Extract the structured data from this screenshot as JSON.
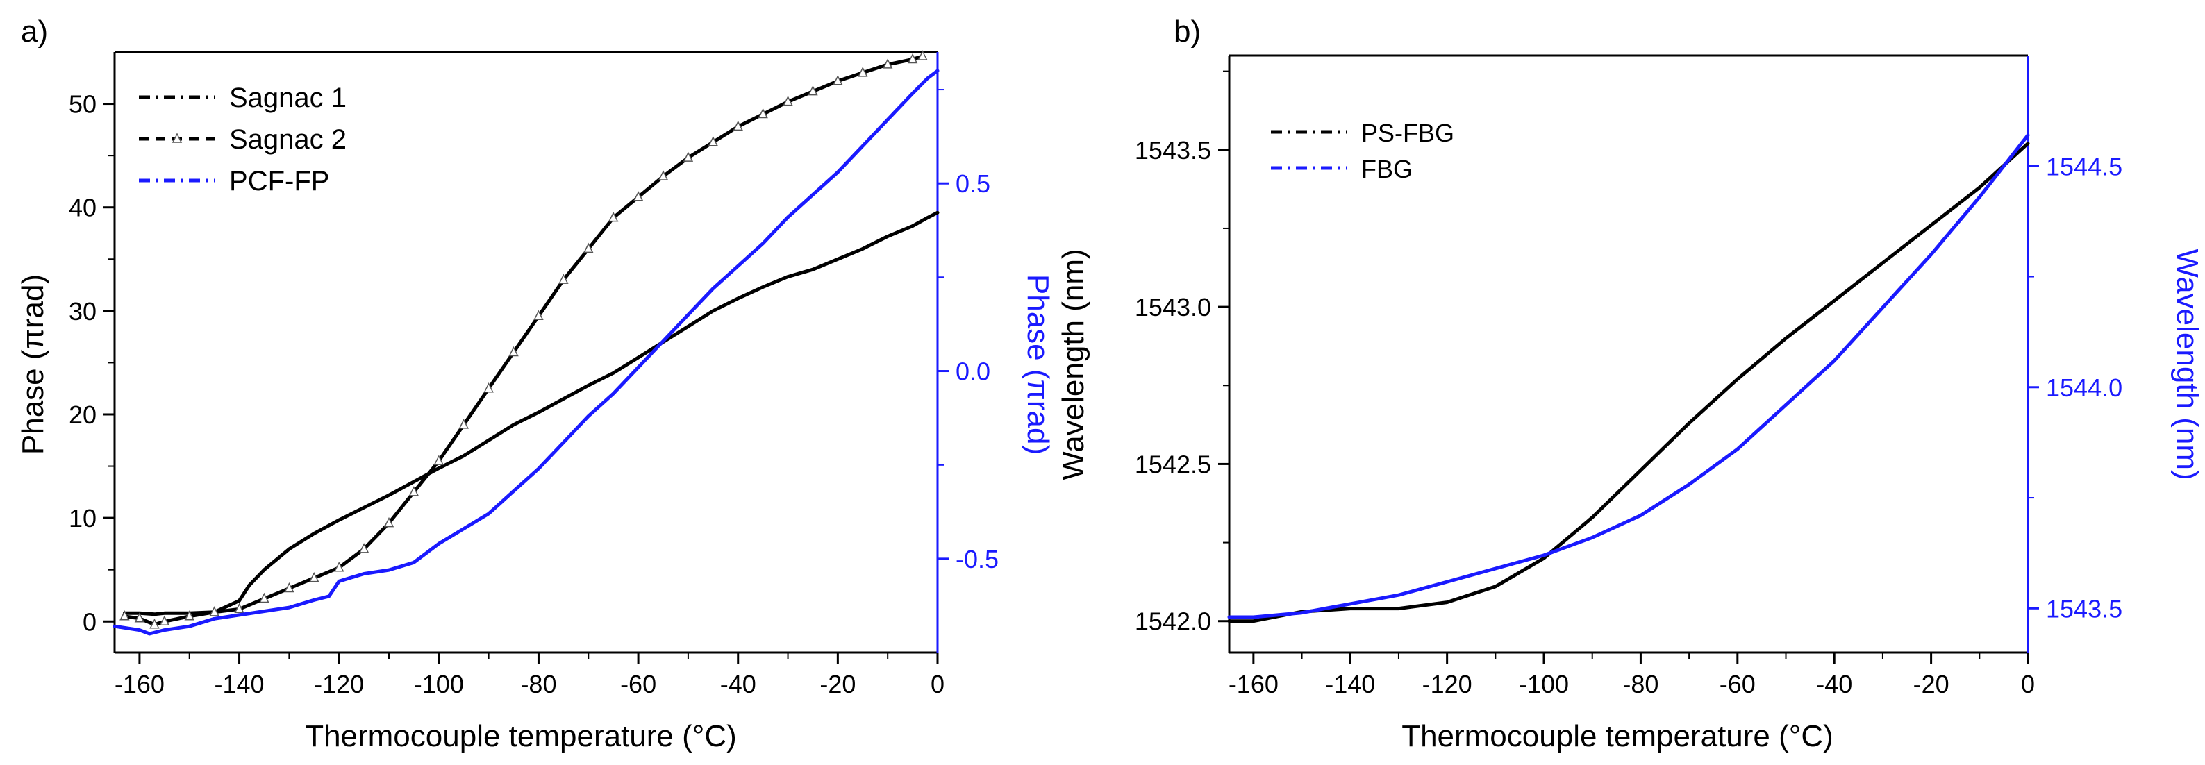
{
  "chart_data": [
    {
      "type": "line",
      "panel_label": "a)",
      "xlabel": "Thermocouple temperature (°C)",
      "ylabel": "Phase (πrad)",
      "y2label": "Phase (πrad)",
      "xlim": [
        -165,
        0
      ],
      "ylim": [
        -3,
        55
      ],
      "y2lim": [
        -0.75,
        0.85
      ],
      "xticks": [
        -160,
        -140,
        -120,
        -100,
        -80,
        -60,
        -40,
        -20,
        0
      ],
      "xtick_labels": [
        "-160",
        "-140",
        "-120",
        "-100",
        "-80",
        "-60",
        "-40",
        "-20",
        "0"
      ],
      "yticks": [
        0,
        10,
        20,
        30,
        40,
        50
      ],
      "ytick_labels": [
        "0",
        "10",
        "20",
        "30",
        "40",
        "50"
      ],
      "y2ticks": [
        -0.5,
        0.0,
        0.5
      ],
      "y2tick_labels": [
        "-0.5",
        "0.0",
        "0.5"
      ],
      "colors": {
        "left_axis": "#000000",
        "right_axis": "#1a1aff"
      },
      "legend_position": "top-left",
      "series": [
        {
          "name": "Sagnac 1",
          "axis": "left",
          "color": "#000000",
          "marker": "none",
          "x": [
            -163,
            -160,
            -157,
            -155,
            -150,
            -145,
            -140,
            -138,
            -135,
            -130,
            -125,
            -120,
            -115,
            -110,
            -105,
            -100,
            -95,
            -90,
            -85,
            -80,
            -75,
            -70,
            -65,
            -60,
            -55,
            -50,
            -45,
            -40,
            -35,
            -30,
            -25,
            -20,
            -15,
            -10,
            -5,
            -2,
            0
          ],
          "values": [
            0.8,
            0.8,
            0.7,
            0.8,
            0.8,
            0.9,
            2.0,
            3.5,
            5.0,
            7.0,
            8.5,
            9.8,
            11.0,
            12.2,
            13.5,
            14.8,
            16.0,
            17.5,
            19.0,
            20.2,
            21.5,
            22.8,
            24.0,
            25.5,
            27.0,
            28.5,
            30.0,
            31.2,
            32.3,
            33.3,
            34.0,
            35.0,
            36.0,
            37.2,
            38.2,
            39.0,
            39.5
          ]
        },
        {
          "name": "Sagnac 2",
          "axis": "left",
          "color": "#000000",
          "marker": "triangle-open",
          "x": [
            -163,
            -160,
            -157,
            -155,
            -150,
            -145,
            -140,
            -135,
            -130,
            -125,
            -120,
            -115,
            -110,
            -105,
            -100,
            -95,
            -90,
            -85,
            -80,
            -75,
            -70,
            -65,
            -60,
            -55,
            -50,
            -45,
            -40,
            -35,
            -30,
            -25,
            -20,
            -15,
            -10,
            -5,
            -3
          ],
          "values": [
            0.5,
            0.3,
            -0.3,
            0.0,
            0.5,
            0.9,
            1.2,
            2.2,
            3.2,
            4.2,
            5.2,
            7.0,
            9.5,
            12.5,
            15.5,
            19.0,
            22.5,
            26.0,
            29.5,
            33.0,
            36.0,
            39.0,
            41.0,
            43.0,
            44.8,
            46.3,
            47.8,
            49.0,
            50.2,
            51.2,
            52.2,
            53.0,
            53.8,
            54.3,
            54.6
          ]
        },
        {
          "name": "PCF-FP",
          "axis": "right",
          "color": "#1a1aff",
          "marker": "none",
          "x": [
            -165,
            -160,
            -158,
            -155,
            -150,
            -145,
            -140,
            -135,
            -130,
            -125,
            -122,
            -120,
            -115,
            -110,
            -105,
            -100,
            -95,
            -90,
            -85,
            -80,
            -75,
            -70,
            -65,
            -60,
            -55,
            -50,
            -45,
            -40,
            -35,
            -30,
            -25,
            -20,
            -15,
            -10,
            -5,
            -2,
            0
          ],
          "values": [
            -0.68,
            -0.69,
            -0.7,
            -0.69,
            -0.68,
            -0.66,
            -0.65,
            -0.64,
            -0.63,
            -0.61,
            -0.6,
            -0.56,
            -0.54,
            -0.53,
            -0.51,
            -0.46,
            -0.42,
            -0.38,
            -0.32,
            -0.26,
            -0.19,
            -0.12,
            -0.06,
            0.01,
            0.08,
            0.15,
            0.22,
            0.28,
            0.34,
            0.41,
            0.47,
            0.53,
            0.6,
            0.67,
            0.74,
            0.78,
            0.8
          ]
        }
      ]
    },
    {
      "type": "line",
      "panel_label": "b)",
      "xlabel": "Thermocouple temperature (°C)",
      "ylabel": "Wavelength (nm)",
      "y2label": "Wavelength (nm)",
      "xlim": [
        -165,
        0
      ],
      "ylim": [
        1541.9,
        1543.8
      ],
      "y2lim": [
        1543.4,
        1544.75
      ],
      "xticks": [
        -160,
        -140,
        -120,
        -100,
        -80,
        -60,
        -40,
        -20,
        0
      ],
      "xtick_labels": [
        "-160",
        "-140",
        "-120",
        "-100",
        "-80",
        "-60",
        "-40",
        "-20",
        "0"
      ],
      "yticks": [
        1542.0,
        1542.5,
        1543.0,
        1543.5
      ],
      "ytick_labels": [
        "1542.0",
        "1542.5",
        "1543.0",
        "1543.5"
      ],
      "y2ticks": [
        1543.5,
        1544.0,
        1544.5
      ],
      "y2tick_labels": [
        "1543.5",
        "1544.0",
        "1544.5"
      ],
      "colors": {
        "left_axis": "#000000",
        "right_axis": "#1a1aff"
      },
      "legend_position": "top-left",
      "series": [
        {
          "name": "PS-FBG",
          "axis": "left",
          "color": "#000000",
          "marker": "none",
          "x": [
            -165,
            -160,
            -150,
            -140,
            -130,
            -120,
            -110,
            -100,
            -90,
            -80,
            -70,
            -60,
            -50,
            -40,
            -30,
            -20,
            -10,
            0
          ],
          "values": [
            1542.0,
            1542.0,
            1542.03,
            1542.04,
            1542.04,
            1542.06,
            1542.11,
            1542.2,
            1542.33,
            1542.48,
            1542.63,
            1542.77,
            1542.9,
            1543.02,
            1543.14,
            1543.26,
            1543.38,
            1543.52
          ]
        },
        {
          "name": "FBG",
          "axis": "right",
          "color": "#1a1aff",
          "marker": "none",
          "x": [
            -165,
            -160,
            -150,
            -140,
            -130,
            -120,
            -110,
            -100,
            -90,
            -80,
            -70,
            -60,
            -50,
            -40,
            -30,
            -20,
            -10,
            0
          ],
          "values": [
            1543.48,
            1543.48,
            1543.49,
            1543.51,
            1543.53,
            1543.56,
            1543.59,
            1543.62,
            1543.66,
            1543.71,
            1543.78,
            1543.86,
            1543.96,
            1544.06,
            1544.18,
            1544.3,
            1544.43,
            1544.57
          ]
        }
      ]
    }
  ]
}
